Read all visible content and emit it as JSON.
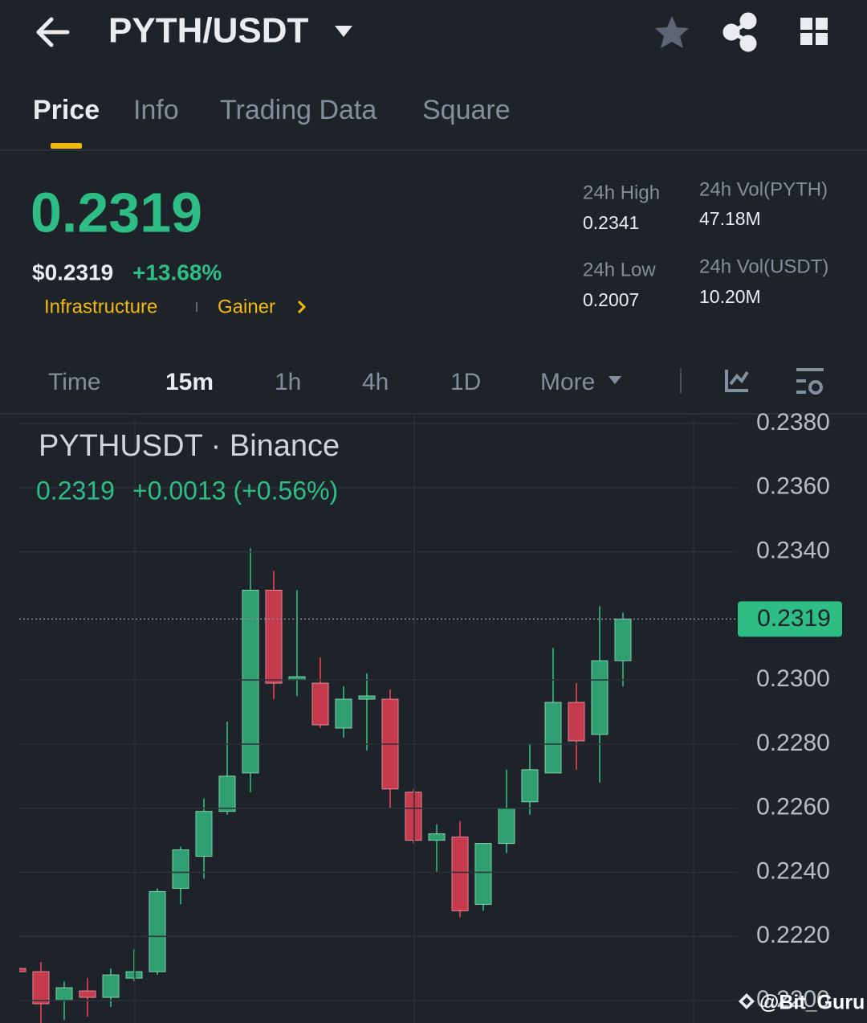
{
  "header": {
    "pair": "PYTH/USDT"
  },
  "tabs": [
    "Price",
    "Info",
    "Trading Data",
    "Square"
  ],
  "price": {
    "last": "0.2319",
    "usd": "$0.2319",
    "change": "+13.68%"
  },
  "tags": [
    "Infrastructure",
    "Gainer"
  ],
  "stats": [
    {
      "label": "24h High",
      "value": "0.2341"
    },
    {
      "label": "24h Vol(PYTH)",
      "value": "47.18M"
    },
    {
      "label": "24h Low",
      "value": "0.2007"
    },
    {
      "label": "24h Vol(USDT)",
      "value": "10.20M"
    }
  ],
  "intervals": [
    "Time",
    "15m",
    "1h",
    "4h",
    "1D",
    "More"
  ],
  "chart_data": {
    "type": "candlestick",
    "title": "PYTHUSDT · Binance",
    "legend_price": "0.2319",
    "legend_change": "+0.0013 (+0.56%)",
    "open": [
      0.221,
      0.2209,
      0.22,
      0.2203,
      0.2201,
      0.2207,
      0.2209,
      0.2235,
      0.2245,
      0.2259,
      0.2271,
      0.2328,
      0.23,
      0.2299,
      0.2285,
      0.2294,
      0.2294,
      0.2265,
      0.225,
      0.2251,
      0.223,
      0.2249,
      0.2262,
      0.2271,
      0.2293,
      0.2283,
      0.2306
    ],
    "high": [
      0.221,
      0.2212,
      0.2206,
      0.2207,
      0.221,
      0.2216,
      0.2235,
      0.2248,
      0.2263,
      0.2287,
      0.2341,
      0.2334,
      0.2328,
      0.2307,
      0.2298,
      0.2302,
      0.2297,
      0.2266,
      0.2255,
      0.2256,
      0.2249,
      0.2272,
      0.228,
      0.231,
      0.2299,
      0.2323,
      0.2321
    ],
    "low": [
      0.2209,
      0.2193,
      0.2194,
      0.2195,
      0.2198,
      0.2206,
      0.2208,
      0.223,
      0.2238,
      0.2258,
      0.2265,
      0.2294,
      0.2295,
      0.2285,
      0.2282,
      0.2278,
      0.226,
      0.2249,
      0.224,
      0.2226,
      0.2228,
      0.2246,
      0.2258,
      0.2271,
      0.2272,
      0.2268,
      0.2298
    ],
    "close": [
      0.2209,
      0.2199,
      0.2204,
      0.2201,
      0.2208,
      0.2209,
      0.2234,
      0.2247,
      0.2259,
      0.227,
      0.2328,
      0.2299,
      0.2301,
      0.2286,
      0.2294,
      0.2295,
      0.2266,
      0.225,
      0.2252,
      0.2228,
      0.2249,
      0.226,
      0.2272,
      0.2293,
      0.2281,
      0.2306,
      0.2319
    ],
    "up_color": "#2f9e70",
    "down_color": "#c53a4c",
    "last_price": 0.2319,
    "ylim": [
      0.2193,
      0.2383
    ],
    "yticks": [
      {
        "value": 0.238,
        "label": "0.2380"
      },
      {
        "value": 0.236,
        "label": "0.2360"
      },
      {
        "value": 0.234,
        "label": "0.2340"
      },
      {
        "value": 0.2319,
        "label": "0.2319"
      },
      {
        "value": 0.23,
        "label": "0.2300"
      },
      {
        "value": 0.228,
        "label": "0.2280"
      },
      {
        "value": 0.226,
        "label": "0.2260"
      },
      {
        "value": 0.224,
        "label": "0.2240"
      },
      {
        "value": 0.222,
        "label": "0.2220"
      },
      {
        "value": 0.22,
        "label": "0.2200"
      }
    ],
    "grid": true
  },
  "watermark": "@Bit_Guru"
}
